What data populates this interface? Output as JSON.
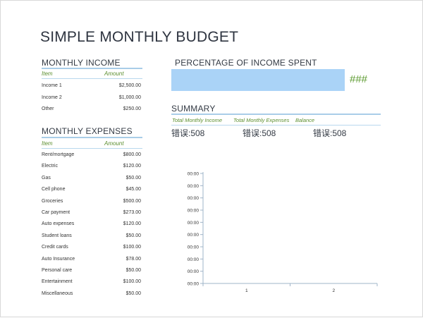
{
  "title": "SIMPLE MONTHLY BUDGET",
  "income": {
    "heading": "MONTHLY INCOME",
    "col_item": "Item",
    "col_amount": "Amount",
    "rows": [
      {
        "label": "Income 1",
        "amount": "$2,500.00"
      },
      {
        "label": "Income 2",
        "amount": "$1,000.00"
      },
      {
        "label": "Other",
        "amount": "$250.00"
      }
    ]
  },
  "expenses": {
    "heading": "MONTHLY EXPENSES",
    "col_item": "Item",
    "col_amount": "Amount",
    "rows": [
      {
        "label": "Rent/mortgage",
        "amount": "$800.00"
      },
      {
        "label": "Electric",
        "amount": "$120.00"
      },
      {
        "label": "Gas",
        "amount": "$50.00"
      },
      {
        "label": "Cell phone",
        "amount": "$45.00"
      },
      {
        "label": "Groceries",
        "amount": "$500.00"
      },
      {
        "label": "Car payment",
        "amount": "$273.00"
      },
      {
        "label": "Auto expenses",
        "amount": "$120.00"
      },
      {
        "label": "Student loans",
        "amount": "$50.00"
      },
      {
        "label": "Credit cards",
        "amount": "$100.00"
      },
      {
        "label": "Auto Insurance",
        "amount": "$78.00"
      },
      {
        "label": "Personal care",
        "amount": "$50.00"
      },
      {
        "label": "Entertainment",
        "amount": "$100.00"
      },
      {
        "label": "Miscellaneous",
        "amount": "$50.00"
      }
    ]
  },
  "percentage": {
    "heading": "PERCENTAGE OF INCOME SPENT",
    "value": "###",
    "bar_color": "#aad3f7"
  },
  "summary": {
    "heading": "SUMMARY",
    "headers": [
      "Total Monthly Income",
      "Total Monthly Expenses",
      "Balance"
    ],
    "values": [
      "错误:508",
      "错误:508",
      "错误:508"
    ]
  },
  "chart_data": {
    "type": "bar",
    "categories": [
      "1",
      "2"
    ],
    "y_ticks": [
      "00:00",
      "00:00",
      "00:00",
      "00:00",
      "00:00",
      "00:00",
      "00:00",
      "00:00",
      "00:00",
      "00:00"
    ],
    "series": [],
    "grid": false
  },
  "colors": {
    "accent_rule": "#a9cde8",
    "header_green": "#5b8e2e",
    "value_green": "#5b9a2e"
  }
}
